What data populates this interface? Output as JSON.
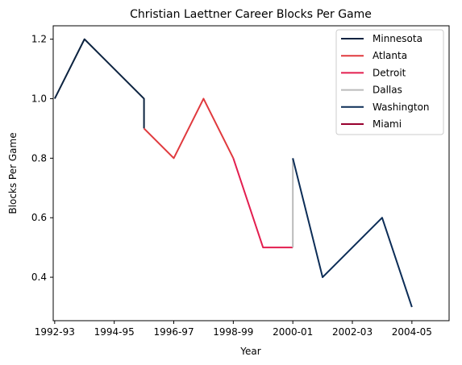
{
  "chart_data": {
    "type": "line",
    "title": "Christian Laettner Career Blocks Per Game",
    "xlabel": "Year",
    "ylabel": "Blocks Per Game",
    "xlim": [
      1991.95,
      2005.25
    ],
    "ylim": [
      0.254,
      1.245
    ],
    "x_ticks": [
      {
        "x": 1992,
        "label": "1992-93"
      },
      {
        "x": 1994,
        "label": "1994-95"
      },
      {
        "x": 1996,
        "label": "1996-97"
      },
      {
        "x": 1998,
        "label": "1998-99"
      },
      {
        "x": 2000,
        "label": "2000-01"
      },
      {
        "x": 2002,
        "label": "2002-03"
      },
      {
        "x": 2004,
        "label": "2004-05"
      }
    ],
    "y_ticks": [
      {
        "y": 0.4,
        "label": "0.4"
      },
      {
        "y": 0.6,
        "label": "0.6"
      },
      {
        "y": 0.8,
        "label": "0.8"
      },
      {
        "y": 1.0,
        "label": "1.0"
      },
      {
        "y": 1.2,
        "label": "1.2"
      }
    ],
    "legend_position": "top-right",
    "grid": false,
    "series": [
      {
        "name": "Minnesota",
        "color": "#0C2340",
        "points": [
          [
            1992,
            1.0
          ],
          [
            1993,
            1.2
          ],
          [
            1995,
            1.0
          ],
          [
            1995,
            0.9
          ]
        ]
      },
      {
        "name": "Atlanta",
        "color": "#E03A3E",
        "points": [
          [
            1995,
            0.9
          ],
          [
            1996,
            0.8
          ],
          [
            1997,
            1.0
          ],
          [
            1998,
            0.8
          ]
        ]
      },
      {
        "name": "Detroit",
        "color": "#E31E4F",
        "points": [
          [
            1998,
            0.8
          ],
          [
            1999,
            0.5
          ],
          [
            2000,
            0.5
          ]
        ]
      },
      {
        "name": "Dallas",
        "color": "#BBBBBB",
        "points": [
          [
            2000,
            0.5
          ],
          [
            2000,
            0.8
          ]
        ]
      },
      {
        "name": "Washington",
        "color": "#0C2D57",
        "points": [
          [
            2000,
            0.8
          ],
          [
            2001,
            0.4
          ],
          [
            2003,
            0.6
          ],
          [
            2004,
            0.3
          ]
        ]
      },
      {
        "name": "Miami",
        "color": "#98002E",
        "points": []
      }
    ]
  }
}
